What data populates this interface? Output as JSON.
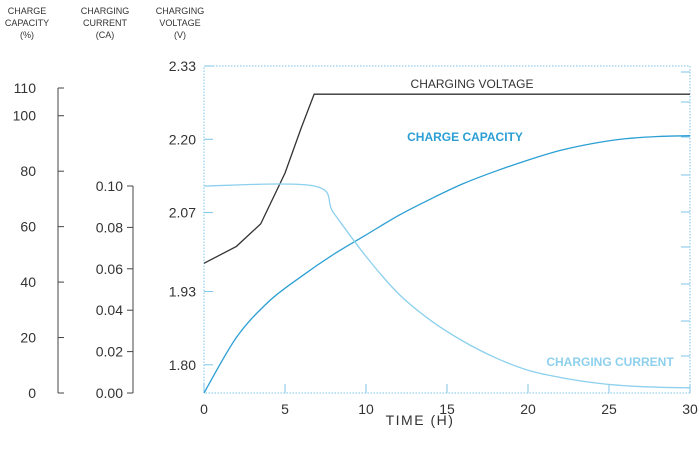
{
  "chart_data": {
    "type": "line",
    "xlabel": "TIME (H)",
    "x_ticks": [
      0,
      5,
      10,
      15,
      20,
      25,
      30
    ],
    "xlim": [
      0,
      30
    ],
    "axes": {
      "capacity": {
        "header": [
          "CHARGE",
          "CAPACITY",
          "(%)"
        ],
        "ticks": [
          "0",
          "20",
          "40",
          "60",
          "80",
          "100",
          "110"
        ],
        "ylim": [
          0,
          110
        ]
      },
      "current": {
        "header": [
          "CHARGING",
          "CURRENT",
          "(CA)"
        ],
        "ticks": [
          "0.00",
          "0.02",
          "0.04",
          "0.06",
          "0.08",
          "0.10"
        ],
        "ylim": [
          0,
          0.1
        ]
      },
      "voltage": {
        "header": [
          "CHARGING",
          "VOLTAGE",
          "(V)"
        ],
        "ticks": [
          "1.80",
          "1.93",
          "2.07",
          "2.20",
          "2.33"
        ],
        "ylim": [
          1.75,
          2.33
        ]
      }
    },
    "series": [
      {
        "name": "CHARGING VOLTAGE",
        "axis": "voltage",
        "color": "#333333",
        "points": [
          [
            0,
            1.98
          ],
          [
            2,
            2.01
          ],
          [
            3.5,
            2.05
          ],
          [
            5,
            2.14
          ],
          [
            6,
            2.22
          ],
          [
            6.8,
            2.28
          ],
          [
            30,
            2.28
          ]
        ]
      },
      {
        "name": "CHARGE CAPACITY",
        "axis": "capacity",
        "color": "#2b9fd4",
        "points": [
          [
            0,
            0
          ],
          [
            2,
            20
          ],
          [
            4,
            33
          ],
          [
            6,
            42
          ],
          [
            8,
            50
          ],
          [
            10,
            57
          ],
          [
            12,
            64
          ],
          [
            14,
            70
          ],
          [
            16,
            75.5
          ],
          [
            18,
            80
          ],
          [
            20,
            84
          ],
          [
            22,
            87.5
          ],
          [
            24,
            90
          ],
          [
            26,
            91.7
          ],
          [
            28,
            92.5
          ],
          [
            30,
            92.8
          ]
        ]
      },
      {
        "name": "CHARGING CURRENT",
        "axis": "current",
        "color": "#8dd0ee",
        "points": [
          [
            0,
            0.1
          ],
          [
            6.8,
            0.1
          ],
          [
            8,
            0.087
          ],
          [
            10,
            0.066
          ],
          [
            12,
            0.048
          ],
          [
            14,
            0.035
          ],
          [
            16,
            0.025
          ],
          [
            18,
            0.017
          ],
          [
            20,
            0.011
          ],
          [
            22,
            0.0075
          ],
          [
            24,
            0.005
          ],
          [
            26,
            0.0035
          ],
          [
            28,
            0.0028
          ],
          [
            30,
            0.0025
          ]
        ]
      }
    ]
  }
}
